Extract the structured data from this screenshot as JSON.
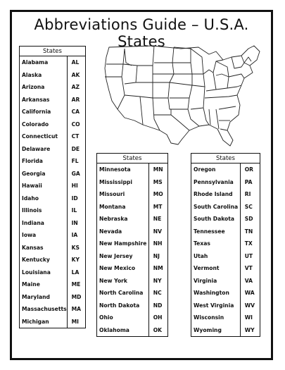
{
  "title": "Abbreviations Guide – U.S.A. States",
  "tables": [
    {
      "header": "States",
      "rows": [
        {
          "name": "Alabama",
          "abbr": "AL"
        },
        {
          "name": "Alaska",
          "abbr": "AK"
        },
        {
          "name": "Arizona",
          "abbr": "AZ"
        },
        {
          "name": "Arkansas",
          "abbr": "AR"
        },
        {
          "name": "California",
          "abbr": "CA"
        },
        {
          "name": "Colorado",
          "abbr": "CO"
        },
        {
          "name": "Connecticut",
          "abbr": "CT"
        },
        {
          "name": "Delaware",
          "abbr": "DE"
        },
        {
          "name": "Florida",
          "abbr": "FL"
        },
        {
          "name": "Georgia",
          "abbr": "GA"
        },
        {
          "name": "Hawaii",
          "abbr": "HI"
        },
        {
          "name": "Idaho",
          "abbr": "ID"
        },
        {
          "name": "Illinois",
          "abbr": "IL"
        },
        {
          "name": "Indiana",
          "abbr": "IN"
        },
        {
          "name": "Iowa",
          "abbr": "IA"
        },
        {
          "name": "Kansas",
          "abbr": "KS"
        },
        {
          "name": "Kentucky",
          "abbr": "KY"
        },
        {
          "name": "Louisiana",
          "abbr": "LA"
        },
        {
          "name": "Maine",
          "abbr": "ME"
        },
        {
          "name": "Maryland",
          "abbr": "MD"
        },
        {
          "name": "Massachusetts",
          "abbr": "MA"
        },
        {
          "name": "Michigan",
          "abbr": "MI"
        }
      ]
    },
    {
      "header": "States",
      "rows": [
        {
          "name": "Minnesota",
          "abbr": "MN"
        },
        {
          "name": "Mississippi",
          "abbr": "MS"
        },
        {
          "name": "Missouri",
          "abbr": "MO"
        },
        {
          "name": "Montana",
          "abbr": "MT"
        },
        {
          "name": "Nebraska",
          "abbr": "NE"
        },
        {
          "name": "Nevada",
          "abbr": "NV"
        },
        {
          "name": "New Hampshire",
          "abbr": "NH"
        },
        {
          "name": "New Jersey",
          "abbr": "NJ"
        },
        {
          "name": "New Mexico",
          "abbr": "NM"
        },
        {
          "name": "New York",
          "abbr": "NY"
        },
        {
          "name": "North Carolina",
          "abbr": "NC"
        },
        {
          "name": "North Dakota",
          "abbr": "ND"
        },
        {
          "name": "Ohio",
          "abbr": "OH"
        },
        {
          "name": "Oklahoma",
          "abbr": "OK"
        }
      ]
    },
    {
      "header": "States",
      "rows": [
        {
          "name": "Oregon",
          "abbr": "OR"
        },
        {
          "name": "Pennsylvania",
          "abbr": "PA"
        },
        {
          "name": "Rhode Island",
          "abbr": "RI"
        },
        {
          "name": "South Carolina",
          "abbr": "SC"
        },
        {
          "name": "South Dakota",
          "abbr": "SD"
        },
        {
          "name": "Tennessee",
          "abbr": "TN"
        },
        {
          "name": "Texas",
          "abbr": "TX"
        },
        {
          "name": "Utah",
          "abbr": "UT"
        },
        {
          "name": "Vermont",
          "abbr": "VT"
        },
        {
          "name": "Virginia",
          "abbr": "VA"
        },
        {
          "name": "Washington",
          "abbr": "WA"
        },
        {
          "name": "West Virginia",
          "abbr": "WV"
        },
        {
          "name": "Wisconsin",
          "abbr": "WI"
        },
        {
          "name": "Wyoming",
          "abbr": "WY"
        }
      ]
    }
  ],
  "map": {
    "icon": "usa-states-outline-map"
  }
}
